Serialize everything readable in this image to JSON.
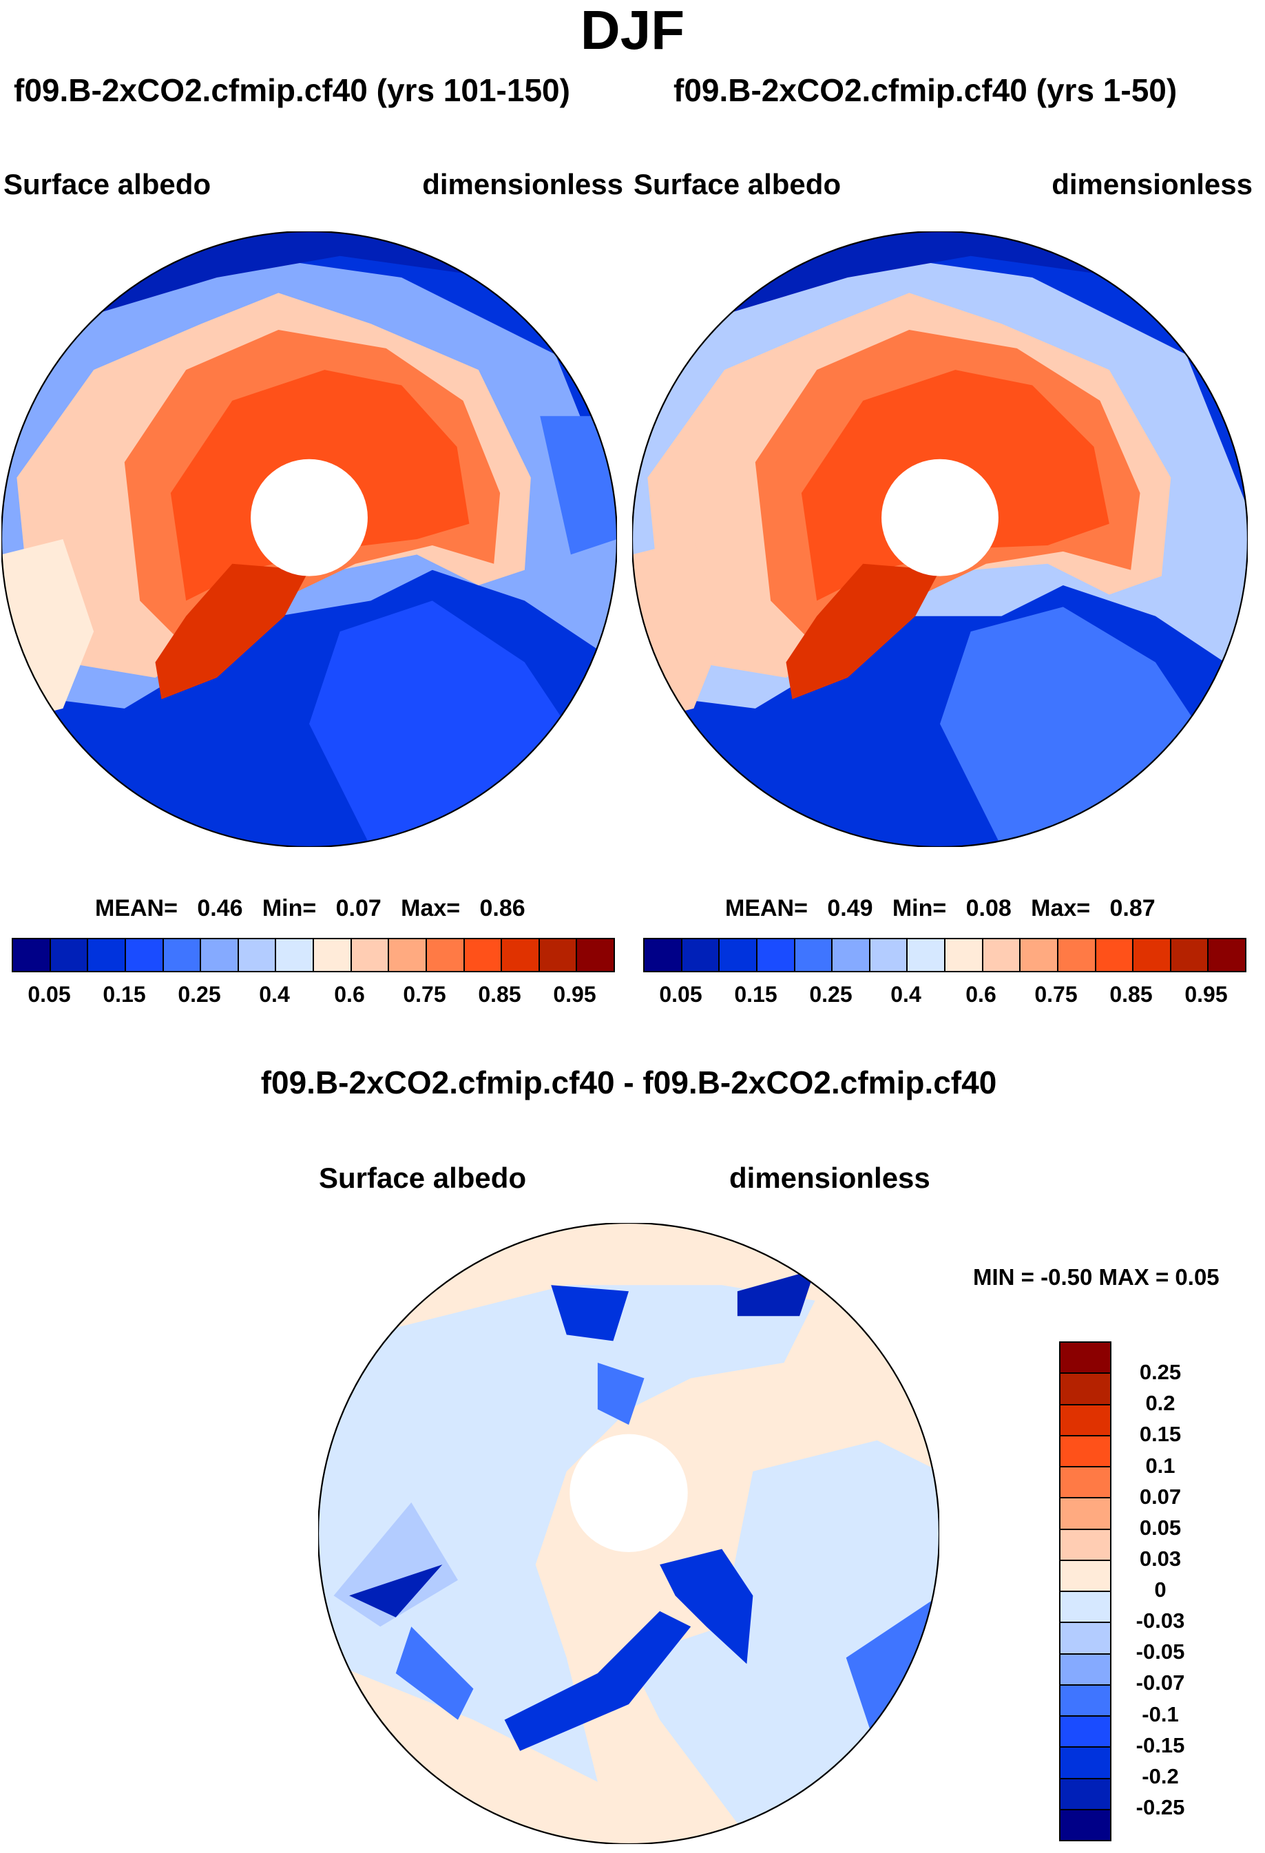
{
  "title": "DJF",
  "panels": [
    {
      "subtitle": "f09.B-2xCO2.cfmip.cf40 (yrs 101-150)",
      "left_label": "Surface albedo",
      "right_label": "dimensionless",
      "stats": {
        "mean_label": "MEAN=",
        "mean": "0.46",
        "min_label": "Min=",
        "min": "0.07",
        "max_label": "Max=",
        "max": "0.86"
      }
    },
    {
      "subtitle": "f09.B-2xCO2.cfmip.cf40 (yrs 1-50)",
      "left_label": "Surface albedo",
      "right_label": "dimensionless",
      "stats": {
        "mean_label": "MEAN=",
        "mean": "0.49",
        "min_label": "Min=",
        "min": "0.08",
        "max_label": "Max=",
        "max": "0.87"
      }
    },
    {
      "subtitle": "f09.B-2xCO2.cfmip.cf40 - f09.B-2xCO2.cfmip.cf40",
      "left_label": "Surface albedo",
      "right_label": "dimensionless",
      "stats": {
        "text": "MIN =  -0.50 MAX =   0.05"
      }
    }
  ],
  "chart_data": [
    {
      "type": "heatmap",
      "projection": "north-polar-stereographic",
      "title": "f09.B-2xCO2.cfmip.cf40 (yrs 101-150)",
      "variable": "Surface albedo",
      "units": "dimensionless",
      "mean": 0.46,
      "min": 0.07,
      "max": 0.86,
      "colorbar": {
        "orientation": "horizontal",
        "tick_labels": [
          "0.05",
          "0.15",
          "0.25",
          "0.4",
          "0.6",
          "0.75",
          "0.85",
          "0.95"
        ]
      }
    },
    {
      "type": "heatmap",
      "projection": "north-polar-stereographic",
      "title": "f09.B-2xCO2.cfmip.cf40 (yrs 1-50)",
      "variable": "Surface albedo",
      "units": "dimensionless",
      "mean": 0.49,
      "min": 0.08,
      "max": 0.87,
      "colorbar": {
        "orientation": "horizontal",
        "tick_labels": [
          "0.05",
          "0.15",
          "0.25",
          "0.4",
          "0.6",
          "0.75",
          "0.85",
          "0.95"
        ]
      }
    },
    {
      "type": "heatmap",
      "projection": "north-polar-stereographic",
      "title": "f09.B-2xCO2.cfmip.cf40 - f09.B-2xCO2.cfmip.cf40",
      "variable": "Surface albedo",
      "units": "dimensionless",
      "min": -0.5,
      "max": 0.05,
      "colorbar": {
        "orientation": "vertical",
        "tick_labels": [
          "0.25",
          "0.2",
          "0.15",
          "0.1",
          "0.07",
          "0.05",
          "0.03",
          "0",
          "-0.03",
          "-0.05",
          "-0.07",
          "-0.1",
          "-0.15",
          "-0.2",
          "-0.25"
        ]
      }
    }
  ],
  "colors": [
    "#000088",
    "#0020B8",
    "#0033DD",
    "#1A4CFF",
    "#3F75FF",
    "#85AAFF",
    "#B3CCFF",
    "#D6E8FF",
    "#FFEBD9",
    "#FFCDB3",
    "#FFAA80",
    "#FF7A45",
    "#FF5119",
    "#E03200",
    "#B52200",
    "#8B0000"
  ]
}
